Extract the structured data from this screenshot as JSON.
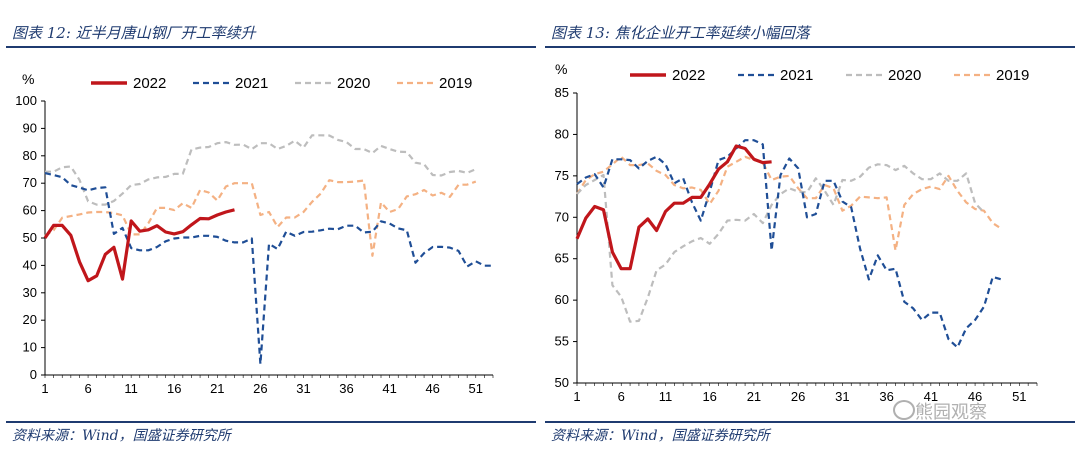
{
  "chart_data": [
    {
      "type": "line",
      "caption": "图表 12:  近半月唐山钢厂开工率续升",
      "source": "资料来源：Wind，国盛证券研究所",
      "unit": "%",
      "x_ticks": [
        1,
        6,
        11,
        16,
        21,
        26,
        31,
        36,
        41,
        46,
        51
      ],
      "xlim": [
        1,
        53
      ],
      "ylim": [
        0,
        100
      ],
      "y_ticks": [
        0,
        10,
        20,
        30,
        40,
        50,
        60,
        70,
        80,
        90,
        100
      ],
      "series": [
        {
          "name": "2022",
          "color": "#c0161b",
          "style": "solid",
          "values": [
            50,
            54.6,
            54.6,
            51,
            41.3,
            34.4,
            36.2,
            44,
            46.6,
            35,
            56.2,
            52.5,
            53,
            54.5,
            52.2,
            51.5,
            52.3,
            54.8,
            57.1,
            57,
            58.4,
            59.5,
            60.3
          ]
        },
        {
          "name": "2021",
          "color": "#1f4e96",
          "style": "dash",
          "values": [
            73.7,
            73,
            72.2,
            69.3,
            68.4,
            67.4,
            68.2,
            68.5,
            51.5,
            53.7,
            46.3,
            45.5,
            45.5,
            46.7,
            48.8,
            49.8,
            50.2,
            50.2,
            50.8,
            50.8,
            50.4,
            49,
            48.4,
            48.4,
            49.8,
            4,
            47.9,
            46,
            52.3,
            50.8,
            52.2,
            52.3,
            52.8,
            53.4,
            53.2,
            54.5,
            54.5,
            52,
            52.3,
            56.1,
            55.3,
            53.5,
            52.8,
            41,
            44.5,
            46.7,
            46.8,
            46.5,
            45.3,
            39.6,
            41.5,
            39.9,
            39.9
          ]
        },
        {
          "name": "2020",
          "color": "#bdbdbd",
          "style": "dash",
          "values": [
            74.2,
            74.2,
            75.8,
            76.1,
            71.2,
            63.4,
            62.2,
            62.2,
            63.5,
            66.2,
            69.3,
            69.7,
            71.4,
            72.1,
            72.3,
            73.4,
            73.4,
            82.3,
            83,
            83.2,
            84.6,
            85,
            84,
            84.1,
            82.4,
            84.6,
            84.6,
            82.5,
            83.6,
            85.5,
            83,
            87.5,
            87.5,
            87.4,
            85.8,
            85,
            82.5,
            82.5,
            81,
            83.6,
            82.5,
            81.5,
            81.4,
            77.5,
            76.9,
            73,
            72.8,
            74.1,
            74.5,
            73.8,
            75.1
          ]
        },
        {
          "name": "2019",
          "color": "#f4b183",
          "style": "dash",
          "values": [
            50.8,
            52.8,
            57.4,
            58,
            58.6,
            59.3,
            59.5,
            59.5,
            59.1,
            58.3,
            51.3,
            51.3,
            55.4,
            61,
            61,
            60.2,
            62.7,
            61,
            67.5,
            66.6,
            63.7,
            68.8,
            70,
            70,
            70,
            58.4,
            59.5,
            54,
            57.5,
            57.5,
            59.5,
            63.2,
            66.2,
            71.1,
            70.4,
            70.4,
            70.6,
            71,
            43.5,
            63,
            59.5,
            60.6,
            65.2,
            66,
            67.5,
            65.5,
            66.5,
            65,
            69.4,
            69.5,
            70.6
          ]
        }
      ]
    },
    {
      "type": "line",
      "caption": "图表 13:  焦化企业开工率延续小幅回落",
      "source": "资料来源：Wind，国盛证券研究所",
      "unit": "%",
      "x_ticks": [
        1,
        6,
        11,
        16,
        21,
        26,
        31,
        36,
        41,
        46,
        51
      ],
      "xlim": [
        1,
        53
      ],
      "ylim": [
        50,
        85
      ],
      "y_ticks": [
        50,
        55,
        60,
        65,
        70,
        75,
        80,
        85
      ],
      "series": [
        {
          "name": "2022",
          "color": "#c0161b",
          "style": "solid",
          "values": [
            67.4,
            69.9,
            71.3,
            70.9,
            65.8,
            63.8,
            63.8,
            68.8,
            69.8,
            68.4,
            70.7,
            71.7,
            71.7,
            72.4,
            72.4,
            74,
            75.8,
            76.7,
            78.6,
            78.3,
            77,
            76.6,
            76.7
          ]
        },
        {
          "name": "2021",
          "color": "#1f4e96",
          "style": "dash",
          "values": [
            74,
            74.8,
            75.2,
            73.6,
            77,
            77,
            76.9,
            75.9,
            76.8,
            77.3,
            76.4,
            74.1,
            74.7,
            71.8,
            69.6,
            73.1,
            76.9,
            77.3,
            78.3,
            79.3,
            79.3,
            78.8,
            66,
            75.1,
            77.1,
            75.9,
            70,
            70.4,
            74.4,
            74.4,
            71.9,
            71.2,
            66.2,
            62.5,
            65.4,
            63.6,
            63.8,
            59.8,
            59,
            57.6,
            58.5,
            58.5,
            55.3,
            54.3,
            56.6,
            57.6,
            59.2,
            62.8,
            62.5
          ]
        },
        {
          "name": "2020",
          "color": "#bdbdbd",
          "style": "dash",
          "values": [
            72.8,
            73.9,
            74.5,
            75.1,
            61.8,
            60.4,
            57.4,
            57.5,
            60.3,
            63.6,
            64.3,
            65.8,
            66.5,
            67.1,
            67.5,
            66.8,
            68,
            69.6,
            69.7,
            69.6,
            70.4,
            69.3,
            71.5,
            72.8,
            73.5,
            73.1,
            73,
            74.7,
            73.2,
            71.5,
            74.5,
            74.4,
            74.9,
            76,
            76.4,
            76.3,
            75.7,
            76.2,
            75.3,
            74.6,
            74.6,
            75.3,
            74.4,
            74.4,
            75.3,
            71.7,
            70.6
          ]
        },
        {
          "name": "2019",
          "color": "#f4b183",
          "style": "dash",
          "values": [
            72.8,
            74.5,
            75.2,
            75.5,
            76.4,
            77.3,
            76.3,
            76.3,
            76.5,
            75.6,
            75.1,
            73.9,
            73.5,
            73.6,
            73.3,
            71.6,
            73.2,
            76.1,
            76.7,
            77.3,
            76.9,
            76.6,
            74.5,
            74.9,
            75,
            73.5,
            72.3,
            72.3,
            73.9,
            73.5,
            70.8,
            71.4,
            72.5,
            72.4,
            72.3,
            72.4,
            66,
            71.5,
            72.8,
            73.4,
            73.7,
            73.4,
            75,
            73.2,
            71.8,
            71,
            70.8,
            69.3,
            68.6
          ]
        }
      ]
    }
  ],
  "watermark": "熊园观察"
}
